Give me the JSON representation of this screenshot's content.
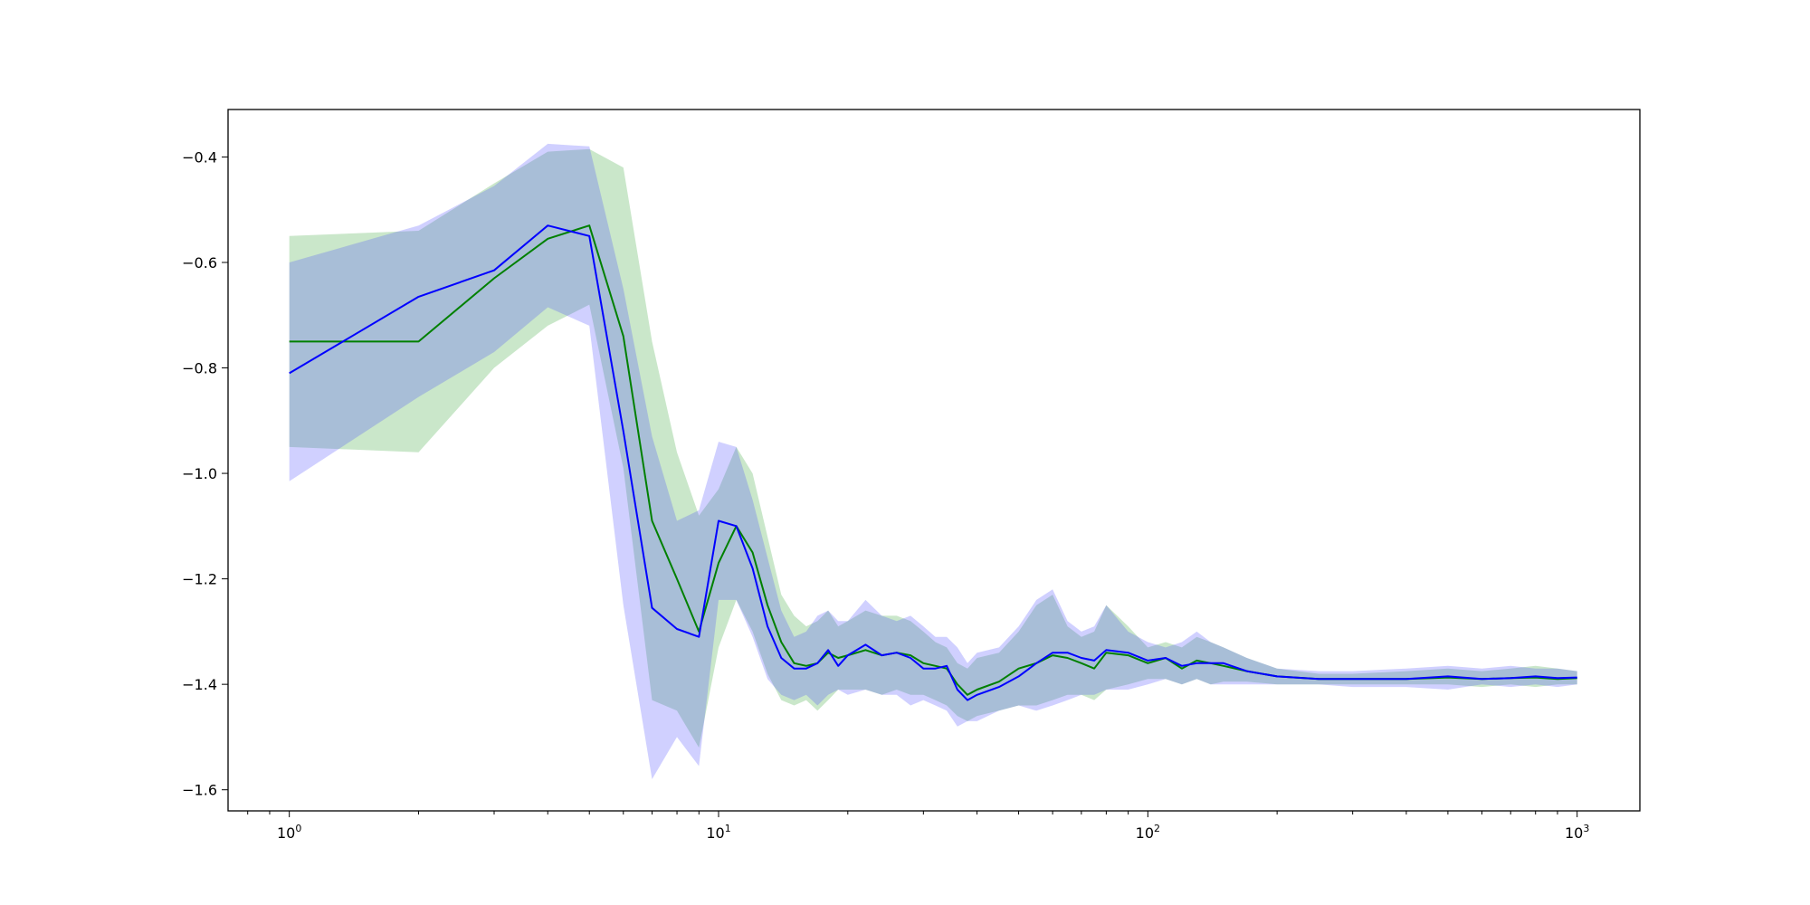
{
  "chart_data": {
    "type": "line",
    "title": "",
    "xlabel": "",
    "ylabel": "",
    "x_scale": "log",
    "xlim": [
      0.72,
      1400
    ],
    "ylim": [
      -1.64,
      -0.31
    ],
    "grid": false,
    "legend": "none",
    "x_tick_labels": [
      {
        "value": 1,
        "base": "10",
        "exp": "0"
      },
      {
        "value": 10,
        "base": "10",
        "exp": "1"
      },
      {
        "value": 100,
        "base": "10",
        "exp": "2"
      },
      {
        "value": 1000,
        "base": "10",
        "exp": "3"
      }
    ],
    "y_ticks": [
      -0.4,
      -0.6,
      -0.8,
      -1.0,
      -1.2,
      -1.4,
      -1.6
    ],
    "y_tick_labels": [
      "−0.4",
      "−0.6",
      "−0.8",
      "−1.0",
      "−1.2",
      "−1.4",
      "−1.6"
    ],
    "series": [
      {
        "color": "#008000",
        "band_color": "#2ca02c",
        "x": [
          1,
          2,
          3,
          4,
          5,
          6,
          7,
          8,
          9,
          10,
          11,
          12,
          13,
          14,
          15,
          16,
          17,
          18,
          19,
          20,
          22,
          24,
          26,
          28,
          30,
          32,
          34,
          36,
          38,
          40,
          45,
          50,
          55,
          60,
          65,
          70,
          75,
          80,
          90,
          100,
          110,
          120,
          130,
          140,
          150,
          170,
          200,
          250,
          300,
          400,
          500,
          600,
          700,
          800,
          900,
          1000
        ],
        "y": [
          -0.75,
          -0.75,
          -0.63,
          -0.555,
          -0.53,
          -0.74,
          -1.09,
          -1.2,
          -1.3,
          -1.17,
          -1.1,
          -1.15,
          -1.25,
          -1.32,
          -1.36,
          -1.365,
          -1.36,
          -1.34,
          -1.35,
          -1.345,
          -1.335,
          -1.345,
          -1.34,
          -1.345,
          -1.36,
          -1.365,
          -1.37,
          -1.4,
          -1.42,
          -1.41,
          -1.395,
          -1.37,
          -1.36,
          -1.345,
          -1.35,
          -1.36,
          -1.37,
          -1.34,
          -1.345,
          -1.36,
          -1.35,
          -1.37,
          -1.355,
          -1.36,
          -1.365,
          -1.375,
          -1.385,
          -1.39,
          -1.39,
          -1.39,
          -1.387,
          -1.39,
          -1.388,
          -1.387,
          -1.39,
          -1.388
        ],
        "upper": [
          -0.55,
          -0.54,
          -0.45,
          -0.39,
          -0.385,
          -0.42,
          -0.75,
          -0.96,
          -1.08,
          -1.03,
          -0.95,
          -1.0,
          -1.12,
          -1.23,
          -1.27,
          -1.29,
          -1.28,
          -1.26,
          -1.29,
          -1.28,
          -1.26,
          -1.27,
          -1.27,
          -1.28,
          -1.3,
          -1.32,
          -1.33,
          -1.36,
          -1.37,
          -1.35,
          -1.34,
          -1.3,
          -1.25,
          -1.23,
          -1.29,
          -1.31,
          -1.3,
          -1.25,
          -1.29,
          -1.33,
          -1.32,
          -1.33,
          -1.31,
          -1.32,
          -1.33,
          -1.35,
          -1.37,
          -1.38,
          -1.38,
          -1.375,
          -1.37,
          -1.375,
          -1.37,
          -1.365,
          -1.37,
          -1.375
        ],
        "lower": [
          -0.95,
          -0.96,
          -0.8,
          -0.72,
          -0.68,
          -0.99,
          -1.43,
          -1.45,
          -1.52,
          -1.33,
          -1.24,
          -1.3,
          -1.38,
          -1.43,
          -1.44,
          -1.43,
          -1.45,
          -1.43,
          -1.41,
          -1.41,
          -1.41,
          -1.42,
          -1.41,
          -1.42,
          -1.42,
          -1.43,
          -1.44,
          -1.46,
          -1.47,
          -1.46,
          -1.45,
          -1.44,
          -1.44,
          -1.43,
          -1.42,
          -1.42,
          -1.43,
          -1.41,
          -1.4,
          -1.39,
          -1.39,
          -1.4,
          -1.39,
          -1.4,
          -1.395,
          -1.395,
          -1.4,
          -1.4,
          -1.4,
          -1.4,
          -1.4,
          -1.405,
          -1.4,
          -1.405,
          -1.4,
          -1.4
        ]
      },
      {
        "color": "#0000ff",
        "band_color": "#4444ff",
        "x": [
          1,
          2,
          3,
          4,
          5,
          6,
          7,
          8,
          9,
          10,
          11,
          12,
          13,
          14,
          15,
          16,
          17,
          18,
          19,
          20,
          22,
          24,
          26,
          28,
          30,
          32,
          34,
          36,
          38,
          40,
          45,
          50,
          55,
          60,
          65,
          70,
          75,
          80,
          90,
          100,
          110,
          120,
          130,
          140,
          150,
          170,
          200,
          250,
          300,
          400,
          500,
          600,
          700,
          800,
          900,
          1000
        ],
        "y": [
          -0.81,
          -0.665,
          -0.615,
          -0.53,
          -0.55,
          -0.92,
          -1.255,
          -1.295,
          -1.31,
          -1.09,
          -1.1,
          -1.18,
          -1.29,
          -1.35,
          -1.37,
          -1.37,
          -1.36,
          -1.335,
          -1.365,
          -1.345,
          -1.325,
          -1.345,
          -1.34,
          -1.35,
          -1.37,
          -1.37,
          -1.365,
          -1.41,
          -1.43,
          -1.42,
          -1.405,
          -1.385,
          -1.36,
          -1.34,
          -1.34,
          -1.35,
          -1.355,
          -1.335,
          -1.34,
          -1.355,
          -1.35,
          -1.365,
          -1.36,
          -1.36,
          -1.36,
          -1.375,
          -1.385,
          -1.39,
          -1.39,
          -1.39,
          -1.385,
          -1.39,
          -1.388,
          -1.385,
          -1.388,
          -1.387
        ],
        "upper": [
          -0.6,
          -0.53,
          -0.455,
          -0.375,
          -0.38,
          -0.65,
          -0.93,
          -1.09,
          -1.07,
          -0.94,
          -0.95,
          -1.05,
          -1.16,
          -1.26,
          -1.31,
          -1.3,
          -1.27,
          -1.26,
          -1.28,
          -1.28,
          -1.24,
          -1.27,
          -1.28,
          -1.27,
          -1.29,
          -1.31,
          -1.31,
          -1.33,
          -1.36,
          -1.34,
          -1.33,
          -1.29,
          -1.24,
          -1.22,
          -1.28,
          -1.3,
          -1.29,
          -1.25,
          -1.3,
          -1.32,
          -1.33,
          -1.32,
          -1.3,
          -1.32,
          -1.33,
          -1.35,
          -1.37,
          -1.375,
          -1.375,
          -1.37,
          -1.365,
          -1.37,
          -1.365,
          -1.37,
          -1.37,
          -1.375
        ],
        "lower": [
          -1.015,
          -0.855,
          -0.77,
          -0.685,
          -0.72,
          -1.25,
          -1.58,
          -1.5,
          -1.555,
          -1.24,
          -1.24,
          -1.31,
          -1.39,
          -1.42,
          -1.43,
          -1.42,
          -1.44,
          -1.42,
          -1.41,
          -1.42,
          -1.41,
          -1.42,
          -1.42,
          -1.44,
          -1.43,
          -1.44,
          -1.45,
          -1.48,
          -1.47,
          -1.47,
          -1.45,
          -1.44,
          -1.45,
          -1.44,
          -1.43,
          -1.42,
          -1.42,
          -1.41,
          -1.41,
          -1.4,
          -1.39,
          -1.4,
          -1.39,
          -1.4,
          -1.4,
          -1.4,
          -1.4,
          -1.4,
          -1.405,
          -1.405,
          -1.41,
          -1.4,
          -1.405,
          -1.4,
          -1.405,
          -1.4
        ]
      }
    ]
  }
}
